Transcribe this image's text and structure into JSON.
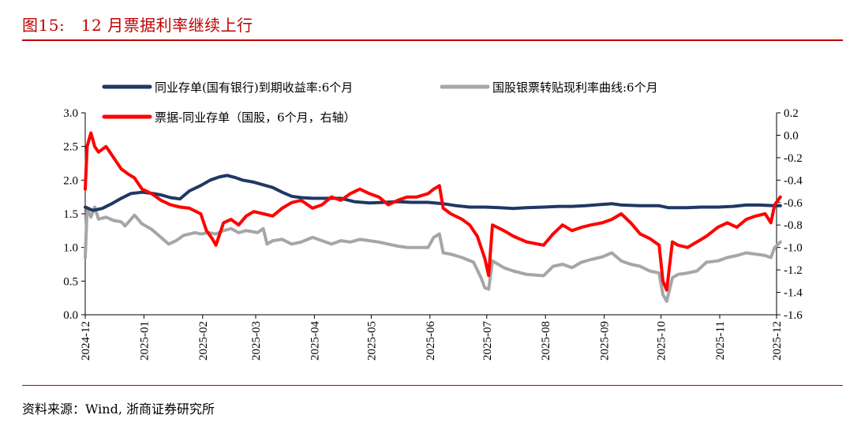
{
  "header": {
    "title": "图15:   12 月票据利率继续上行"
  },
  "footer": {
    "source": "资料来源：Wind, 浙商证券研究所"
  },
  "colors": {
    "accent": "#c00000",
    "navy": "#1f3864",
    "grey": "#a6a6a6",
    "red": "#ff0000"
  },
  "chart_data": {
    "type": "line",
    "title": "",
    "xlabel": "",
    "ylabel": "",
    "legend_position": "top",
    "grid": false,
    "x_ticks": [
      "2024-12",
      "2025-01",
      "2025-02",
      "2025-03",
      "2025-04",
      "2025-05",
      "2025-06",
      "2025-07",
      "2025-08",
      "2025-09",
      "2025-10",
      "2025-11",
      "2025-12"
    ],
    "left_axis": {
      "min": 0.0,
      "max": 3.0,
      "ticks": [
        "0.0",
        "0.5",
        "1.0",
        "1.5",
        "2.0",
        "2.5",
        "3.0"
      ]
    },
    "right_axis": {
      "min": -1.6,
      "max": 0.2,
      "ticks": [
        "-1.6",
        "-1.4",
        "-1.2",
        "-1.0",
        "-0.8",
        "-0.6",
        "-0.4",
        "-0.2",
        "0.0",
        "0.2"
      ]
    },
    "series": [
      {
        "name": "同业存单(国有银行)到期收益率:6个月",
        "axis": "left",
        "color": "#1f3864",
        "points": [
          [
            "2024-12-01",
            1.6
          ],
          [
            "2024-12-05",
            1.55
          ],
          [
            "2024-12-10",
            1.58
          ],
          [
            "2024-12-15",
            1.65
          ],
          [
            "2024-12-20",
            1.73
          ],
          [
            "2024-12-25",
            1.8
          ],
          [
            "2024-12-31",
            1.82
          ],
          [
            "2025-01-06",
            1.8
          ],
          [
            "2025-01-10",
            1.78
          ],
          [
            "2025-01-15",
            1.74
          ],
          [
            "2025-01-20",
            1.72
          ],
          [
            "2025-01-25",
            1.84
          ],
          [
            "2025-01-31",
            1.92
          ],
          [
            "2025-02-05",
            2.0
          ],
          [
            "2025-02-10",
            2.05
          ],
          [
            "2025-02-14",
            2.07
          ],
          [
            "2025-02-18",
            2.04
          ],
          [
            "2025-02-22",
            2.0
          ],
          [
            "2025-02-28",
            1.97
          ],
          [
            "2025-03-05",
            1.93
          ],
          [
            "2025-03-10",
            1.89
          ],
          [
            "2025-03-15",
            1.82
          ],
          [
            "2025-03-20",
            1.76
          ],
          [
            "2025-03-25",
            1.74
          ],
          [
            "2025-03-31",
            1.73
          ],
          [
            "2025-04-08",
            1.73
          ],
          [
            "2025-04-15",
            1.73
          ],
          [
            "2025-04-22",
            1.68
          ],
          [
            "2025-04-30",
            1.66
          ],
          [
            "2025-05-08",
            1.67
          ],
          [
            "2025-05-15",
            1.68
          ],
          [
            "2025-05-22",
            1.67
          ],
          [
            "2025-05-31",
            1.67
          ],
          [
            "2025-06-08",
            1.65
          ],
          [
            "2025-06-15",
            1.62
          ],
          [
            "2025-06-22",
            1.6
          ],
          [
            "2025-06-30",
            1.6
          ],
          [
            "2025-07-08",
            1.59
          ],
          [
            "2025-07-15",
            1.58
          ],
          [
            "2025-07-22",
            1.59
          ],
          [
            "2025-07-31",
            1.6
          ],
          [
            "2025-08-08",
            1.61
          ],
          [
            "2025-08-15",
            1.61
          ],
          [
            "2025-08-22",
            1.62
          ],
          [
            "2025-08-31",
            1.64
          ],
          [
            "2025-09-05",
            1.65
          ],
          [
            "2025-09-10",
            1.63
          ],
          [
            "2025-09-20",
            1.62
          ],
          [
            "2025-09-30",
            1.62
          ],
          [
            "2025-10-05",
            1.59
          ],
          [
            "2025-10-15",
            1.59
          ],
          [
            "2025-10-22",
            1.6
          ],
          [
            "2025-10-31",
            1.6
          ],
          [
            "2025-11-08",
            1.61
          ],
          [
            "2025-11-15",
            1.63
          ],
          [
            "2025-11-22",
            1.63
          ],
          [
            "2025-11-30",
            1.62
          ],
          [
            "2025-12-03",
            1.62
          ]
        ]
      },
      {
        "name": "国股银票转贴现利率曲线:6个月",
        "axis": "left",
        "color": "#a6a6a6",
        "points": [
          [
            "2024-12-01",
            0.85
          ],
          [
            "2024-12-02",
            1.58
          ],
          [
            "2024-12-04",
            1.45
          ],
          [
            "2024-12-06",
            1.6
          ],
          [
            "2024-12-08",
            1.42
          ],
          [
            "2024-12-12",
            1.45
          ],
          [
            "2024-12-16",
            1.4
          ],
          [
            "2024-12-20",
            1.38
          ],
          [
            "2024-12-22",
            1.32
          ],
          [
            "2024-12-24",
            1.38
          ],
          [
            "2024-12-27",
            1.48
          ],
          [
            "2024-12-31",
            1.35
          ],
          [
            "2025-01-05",
            1.27
          ],
          [
            "2025-01-10",
            1.15
          ],
          [
            "2025-01-14",
            1.05
          ],
          [
            "2025-01-18",
            1.1
          ],
          [
            "2025-01-22",
            1.18
          ],
          [
            "2025-01-28",
            1.22
          ],
          [
            "2025-01-31",
            1.2
          ],
          [
            "2025-02-04",
            1.22
          ],
          [
            "2025-02-08",
            1.2
          ],
          [
            "2025-02-12",
            1.25
          ],
          [
            "2025-02-16",
            1.28
          ],
          [
            "2025-02-20",
            1.22
          ],
          [
            "2025-02-24",
            1.25
          ],
          [
            "2025-02-28",
            1.23
          ],
          [
            "2025-03-02",
            1.22
          ],
          [
            "2025-03-05",
            1.28
          ],
          [
            "2025-03-07",
            1.05
          ],
          [
            "2025-03-10",
            1.1
          ],
          [
            "2025-03-15",
            1.12
          ],
          [
            "2025-03-20",
            1.05
          ],
          [
            "2025-03-25",
            1.08
          ],
          [
            "2025-03-31",
            1.15
          ],
          [
            "2025-04-05",
            1.1
          ],
          [
            "2025-04-10",
            1.05
          ],
          [
            "2025-04-15",
            1.1
          ],
          [
            "2025-04-20",
            1.08
          ],
          [
            "2025-04-25",
            1.12
          ],
          [
            "2025-04-30",
            1.1
          ],
          [
            "2025-05-05",
            1.08
          ],
          [
            "2025-05-10",
            1.05
          ],
          [
            "2025-05-15",
            1.02
          ],
          [
            "2025-05-20",
            1.0
          ],
          [
            "2025-05-25",
            1.0
          ],
          [
            "2025-05-31",
            1.0
          ],
          [
            "2025-06-03",
            1.15
          ],
          [
            "2025-06-06",
            1.2
          ],
          [
            "2025-06-08",
            0.92
          ],
          [
            "2025-06-12",
            0.9
          ],
          [
            "2025-06-18",
            0.85
          ],
          [
            "2025-06-24",
            0.78
          ],
          [
            "2025-06-28",
            0.55
          ],
          [
            "2025-06-30",
            0.4
          ],
          [
            "2025-07-02",
            0.38
          ],
          [
            "2025-07-04",
            0.8
          ],
          [
            "2025-07-10",
            0.7
          ],
          [
            "2025-07-15",
            0.65
          ],
          [
            "2025-07-22",
            0.6
          ],
          [
            "2025-07-31",
            0.58
          ],
          [
            "2025-08-05",
            0.72
          ],
          [
            "2025-08-10",
            0.75
          ],
          [
            "2025-08-15",
            0.7
          ],
          [
            "2025-08-20",
            0.78
          ],
          [
            "2025-08-25",
            0.82
          ],
          [
            "2025-08-31",
            0.86
          ],
          [
            "2025-09-05",
            0.92
          ],
          [
            "2025-09-10",
            0.8
          ],
          [
            "2025-09-15",
            0.75
          ],
          [
            "2025-09-20",
            0.72
          ],
          [
            "2025-09-25",
            0.65
          ],
          [
            "2025-09-30",
            0.62
          ],
          [
            "2025-10-02",
            0.3
          ],
          [
            "2025-10-04",
            0.2
          ],
          [
            "2025-10-07",
            0.55
          ],
          [
            "2025-10-10",
            0.6
          ],
          [
            "2025-10-15",
            0.62
          ],
          [
            "2025-10-20",
            0.65
          ],
          [
            "2025-10-25",
            0.78
          ],
          [
            "2025-10-31",
            0.8
          ],
          [
            "2025-11-05",
            0.85
          ],
          [
            "2025-11-10",
            0.88
          ],
          [
            "2025-11-15",
            0.92
          ],
          [
            "2025-11-20",
            0.9
          ],
          [
            "2025-11-25",
            0.88
          ],
          [
            "2025-11-28",
            0.85
          ],
          [
            "2025-11-30",
            1.0
          ],
          [
            "2025-12-03",
            1.08
          ]
        ]
      },
      {
        "name": "票据-同业存单（国股，6个月，右轴）",
        "axis": "right",
        "color": "#ff0000",
        "points": [
          [
            "2024-12-01",
            -0.48
          ],
          [
            "2024-12-02",
            -0.1
          ],
          [
            "2024-12-04",
            0.02
          ],
          [
            "2024-12-06",
            -0.1
          ],
          [
            "2024-12-08",
            -0.15
          ],
          [
            "2024-12-12",
            -0.1
          ],
          [
            "2024-12-16",
            -0.2
          ],
          [
            "2024-12-20",
            -0.3
          ],
          [
            "2024-12-24",
            -0.35
          ],
          [
            "2024-12-27",
            -0.38
          ],
          [
            "2024-12-31",
            -0.48
          ],
          [
            "2025-01-05",
            -0.52
          ],
          [
            "2025-01-10",
            -0.58
          ],
          [
            "2025-01-15",
            -0.62
          ],
          [
            "2025-01-20",
            -0.64
          ],
          [
            "2025-01-25",
            -0.65
          ],
          [
            "2025-01-31",
            -0.7
          ],
          [
            "2025-02-03",
            -0.85
          ],
          [
            "2025-02-06",
            -0.92
          ],
          [
            "2025-02-08",
            -0.98
          ],
          [
            "2025-02-12",
            -0.78
          ],
          [
            "2025-02-16",
            -0.75
          ],
          [
            "2025-02-20",
            -0.8
          ],
          [
            "2025-02-24",
            -0.72
          ],
          [
            "2025-02-28",
            -0.68
          ],
          [
            "2025-03-05",
            -0.7
          ],
          [
            "2025-03-10",
            -0.72
          ],
          [
            "2025-03-15",
            -0.65
          ],
          [
            "2025-03-20",
            -0.6
          ],
          [
            "2025-03-25",
            -0.58
          ],
          [
            "2025-03-31",
            -0.65
          ],
          [
            "2025-04-05",
            -0.62
          ],
          [
            "2025-04-10",
            -0.55
          ],
          [
            "2025-04-15",
            -0.58
          ],
          [
            "2025-04-20",
            -0.52
          ],
          [
            "2025-04-25",
            -0.48
          ],
          [
            "2025-04-30",
            -0.52
          ],
          [
            "2025-05-05",
            -0.55
          ],
          [
            "2025-05-10",
            -0.62
          ],
          [
            "2025-05-15",
            -0.58
          ],
          [
            "2025-05-20",
            -0.55
          ],
          [
            "2025-05-25",
            -0.55
          ],
          [
            "2025-05-31",
            -0.52
          ],
          [
            "2025-06-03",
            -0.48
          ],
          [
            "2025-06-06",
            -0.45
          ],
          [
            "2025-06-08",
            -0.65
          ],
          [
            "2025-06-12",
            -0.7
          ],
          [
            "2025-06-18",
            -0.75
          ],
          [
            "2025-06-22",
            -0.8
          ],
          [
            "2025-06-26",
            -0.9
          ],
          [
            "2025-06-30",
            -1.1
          ],
          [
            "2025-07-02",
            -1.25
          ],
          [
            "2025-07-04",
            -0.8
          ],
          [
            "2025-07-10",
            -0.85
          ],
          [
            "2025-07-15",
            -0.9
          ],
          [
            "2025-07-22",
            -0.95
          ],
          [
            "2025-07-31",
            -0.98
          ],
          [
            "2025-08-05",
            -0.88
          ],
          [
            "2025-08-10",
            -0.8
          ],
          [
            "2025-08-15",
            -0.85
          ],
          [
            "2025-08-20",
            -0.82
          ],
          [
            "2025-08-25",
            -0.8
          ],
          [
            "2025-08-31",
            -0.78
          ],
          [
            "2025-09-05",
            -0.75
          ],
          [
            "2025-09-10",
            -0.7
          ],
          [
            "2025-09-15",
            -0.78
          ],
          [
            "2025-09-20",
            -0.88
          ],
          [
            "2025-09-25",
            -0.92
          ],
          [
            "2025-09-30",
            -0.98
          ],
          [
            "2025-10-02",
            -1.3
          ],
          [
            "2025-10-04",
            -1.38
          ],
          [
            "2025-10-07",
            -0.95
          ],
          [
            "2025-10-10",
            -0.98
          ],
          [
            "2025-10-15",
            -1.0
          ],
          [
            "2025-10-20",
            -0.95
          ],
          [
            "2025-10-25",
            -0.9
          ],
          [
            "2025-10-31",
            -0.82
          ],
          [
            "2025-11-05",
            -0.78
          ],
          [
            "2025-11-10",
            -0.82
          ],
          [
            "2025-11-15",
            -0.75
          ],
          [
            "2025-11-20",
            -0.72
          ],
          [
            "2025-11-25",
            -0.7
          ],
          [
            "2025-11-28",
            -0.78
          ],
          [
            "2025-11-30",
            -0.62
          ],
          [
            "2025-12-03",
            -0.55
          ]
        ]
      }
    ]
  }
}
